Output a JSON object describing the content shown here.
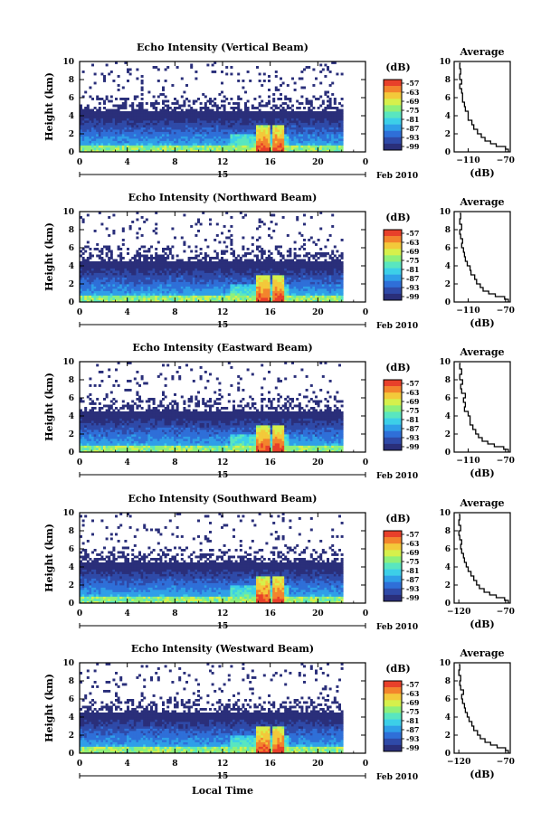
{
  "figure": {
    "xlabel": "Local Time",
    "date_label": "Feb 2010",
    "date_tick": "15"
  },
  "chart_data": [
    {
      "type": "heatmap",
      "title": "Echo Intensity (Vertical Beam)",
      "ylabel": "Height (km)",
      "xlim": [
        0,
        24
      ],
      "ylim": [
        0,
        10
      ],
      "x_ticks": [
        "0",
        "4",
        "8",
        "12",
        "16",
        "20",
        "0"
      ],
      "y_ticks": [
        "0",
        "2",
        "4",
        "6",
        "8",
        "10"
      ],
      "colorbar": {
        "label": "(dB)",
        "ticks": [
          "-57",
          "-63",
          "-69",
          "-75",
          "-81",
          "-87",
          "-93",
          "-99"
        ]
      },
      "average": {
        "title": "Average",
        "xlabel": "(dB)",
        "x_ticks": [
          "-110",
          "-70"
        ],
        "y_ticks": [
          "0",
          "2",
          "4",
          "6",
          "8",
          "10"
        ],
        "xlim": [
          -125,
          -65
        ],
        "profile": [
          [
            -67,
            0
          ],
          [
            -70,
            0.3
          ],
          [
            -80,
            0.6
          ],
          [
            -86,
            0.9
          ],
          [
            -92,
            1.2
          ],
          [
            -96,
            1.6
          ],
          [
            -100,
            2.0
          ],
          [
            -104,
            2.5
          ],
          [
            -106,
            3.0
          ],
          [
            -110,
            3.5
          ],
          [
            -110,
            4.0
          ],
          [
            -113,
            4.5
          ],
          [
            -114,
            5.0
          ],
          [
            -116,
            5.5
          ],
          [
            -116,
            6.0
          ],
          [
            -117,
            6.5
          ],
          [
            -119,
            7.0
          ],
          [
            -117,
            7.5
          ],
          [
            -119,
            8.0
          ],
          [
            -118,
            8.6
          ],
          [
            -119,
            9.2
          ],
          [
            -118,
            9.8
          ]
        ]
      }
    },
    {
      "type": "heatmap",
      "title": "Echo Intensity (Northward Beam)",
      "ylabel": "Height (km)",
      "xlim": [
        0,
        24
      ],
      "ylim": [
        0,
        10
      ],
      "x_ticks": [
        "0",
        "4",
        "8",
        "12",
        "16",
        "20",
        "0"
      ],
      "y_ticks": [
        "0",
        "2",
        "4",
        "6",
        "8",
        "10"
      ],
      "colorbar": {
        "label": "(dB)",
        "ticks": [
          "-57",
          "-63",
          "-69",
          "-75",
          "-81",
          "-87",
          "-93",
          "-99"
        ]
      },
      "average": {
        "title": "Average",
        "xlabel": "(dB)",
        "x_ticks": [
          "-110",
          "-70"
        ],
        "y_ticks": [
          "0",
          "2",
          "4",
          "6",
          "8",
          "10"
        ],
        "xlim": [
          -125,
          -65
        ],
        "profile": [
          [
            -67,
            0
          ],
          [
            -71,
            0.3
          ],
          [
            -81,
            0.6
          ],
          [
            -88,
            0.9
          ],
          [
            -94,
            1.2
          ],
          [
            -97,
            1.6
          ],
          [
            -101,
            2.0
          ],
          [
            -103,
            2.5
          ],
          [
            -107,
            3.0
          ],
          [
            -108,
            3.5
          ],
          [
            -111,
            4.0
          ],
          [
            -113,
            4.5
          ],
          [
            -114,
            5.0
          ],
          [
            -115,
            5.5
          ],
          [
            -117,
            6.0
          ],
          [
            -116,
            6.5
          ],
          [
            -118,
            7.0
          ],
          [
            -119,
            7.5
          ],
          [
            -117,
            8.0
          ],
          [
            -119,
            8.6
          ],
          [
            -118,
            9.2
          ],
          [
            -119,
            9.8
          ]
        ]
      }
    },
    {
      "type": "heatmap",
      "title": "Echo Intensity (Eastward Beam)",
      "ylabel": "Height (km)",
      "xlim": [
        0,
        24
      ],
      "ylim": [
        0,
        10
      ],
      "x_ticks": [
        "0",
        "4",
        "8",
        "12",
        "16",
        "20",
        "0"
      ],
      "y_ticks": [
        "0",
        "2",
        "4",
        "6",
        "8",
        "10"
      ],
      "colorbar": {
        "label": "(dB)",
        "ticks": [
          "-57",
          "-63",
          "-69",
          "-75",
          "-81",
          "-87",
          "-93",
          "-99"
        ]
      },
      "average": {
        "title": "Average",
        "xlabel": "(dB)",
        "x_ticks": [
          "-110",
          "-70"
        ],
        "y_ticks": [
          "0",
          "2",
          "4",
          "6",
          "8",
          "10"
        ],
        "xlim": [
          -125,
          -65
        ],
        "profile": [
          [
            -67,
            0
          ],
          [
            -72,
            0.3
          ],
          [
            -82,
            0.6
          ],
          [
            -89,
            0.9
          ],
          [
            -95,
            1.2
          ],
          [
            -99,
            1.6
          ],
          [
            -102,
            2.0
          ],
          [
            -105,
            2.5
          ],
          [
            -108,
            3.0
          ],
          [
            -108,
            3.5
          ],
          [
            -110,
            4.0
          ],
          [
            -114,
            4.5
          ],
          [
            -113,
            5.0
          ],
          [
            -115,
            5.5
          ],
          [
            -113,
            6.0
          ],
          [
            -117,
            6.5
          ],
          [
            -118,
            7.0
          ],
          [
            -116,
            7.5
          ],
          [
            -119,
            8.0
          ],
          [
            -117,
            8.6
          ],
          [
            -119,
            9.2
          ],
          [
            -118,
            9.8
          ]
        ]
      }
    },
    {
      "type": "heatmap",
      "title": "Echo Intensity (Southward Beam)",
      "ylabel": "Height (km)",
      "xlim": [
        0,
        24
      ],
      "ylim": [
        0,
        10
      ],
      "x_ticks": [
        "0",
        "4",
        "8",
        "12",
        "16",
        "20",
        "0"
      ],
      "y_ticks": [
        "0",
        "2",
        "4",
        "6",
        "8",
        "10"
      ],
      "colorbar": {
        "label": "(dB)",
        "ticks": [
          "-57",
          "-63",
          "-69",
          "-75",
          "-81",
          "-87",
          "-93",
          "-99"
        ]
      },
      "average": {
        "title": "Average",
        "xlabel": "(dB)",
        "x_ticks": [
          "-120",
          "-70"
        ],
        "y_ticks": [
          "0",
          "2",
          "4",
          "6",
          "8",
          "10"
        ],
        "xlim": [
          -125,
          -65
        ],
        "profile": [
          [
            -67,
            0
          ],
          [
            -71,
            0.3
          ],
          [
            -80,
            0.6
          ],
          [
            -87,
            0.9
          ],
          [
            -93,
            1.2
          ],
          [
            -98,
            1.6
          ],
          [
            -101,
            2.0
          ],
          [
            -104,
            2.5
          ],
          [
            -107,
            3.0
          ],
          [
            -110,
            3.5
          ],
          [
            -112,
            4.0
          ],
          [
            -114,
            4.5
          ],
          [
            -115,
            5.0
          ],
          [
            -117,
            5.5
          ],
          [
            -118,
            6.0
          ],
          [
            -117,
            6.5
          ],
          [
            -119,
            7.0
          ],
          [
            -120,
            7.5
          ],
          [
            -118,
            8.0
          ],
          [
            -120,
            8.6
          ],
          [
            -119,
            9.2
          ],
          [
            -120,
            9.8
          ]
        ]
      }
    },
    {
      "type": "heatmap",
      "title": "Echo Intensity (Westward Beam)",
      "ylabel": "Height (km)",
      "xlim": [
        0,
        24
      ],
      "ylim": [
        0,
        10
      ],
      "x_ticks": [
        "0",
        "4",
        "8",
        "12",
        "16",
        "20",
        "0"
      ],
      "y_ticks": [
        "0",
        "2",
        "4",
        "6",
        "8",
        "10"
      ],
      "colorbar": {
        "label": "(dB)",
        "ticks": [
          "-57",
          "-63",
          "-69",
          "-75",
          "-81",
          "-87",
          "-93",
          "-99"
        ]
      },
      "average": {
        "title": "Average",
        "xlabel": "(dB)",
        "x_ticks": [
          "-120",
          "-70"
        ],
        "y_ticks": [
          "0",
          "2",
          "4",
          "6",
          "8",
          "10"
        ],
        "xlim": [
          -125,
          -65
        ],
        "profile": [
          [
            -67,
            0
          ],
          [
            -70,
            0.3
          ],
          [
            -79,
            0.6
          ],
          [
            -86,
            0.9
          ],
          [
            -92,
            1.2
          ],
          [
            -97,
            1.6
          ],
          [
            -100,
            2.0
          ],
          [
            -104,
            2.5
          ],
          [
            -106,
            3.0
          ],
          [
            -109,
            3.5
          ],
          [
            -111,
            4.0
          ],
          [
            -113,
            4.5
          ],
          [
            -114,
            5.0
          ],
          [
            -116,
            5.5
          ],
          [
            -117,
            6.0
          ],
          [
            -115,
            6.5
          ],
          [
            -118,
            7.0
          ],
          [
            -119,
            7.5
          ],
          [
            -118,
            8.0
          ],
          [
            -120,
            8.6
          ],
          [
            -119,
            9.2
          ],
          [
            -120,
            9.8
          ]
        ]
      }
    }
  ],
  "colors": {
    "colormap": [
      "#2a2f7a",
      "#2f4aa8",
      "#2f6fd8",
      "#2f9fe8",
      "#3ccfe8",
      "#59e6c0",
      "#8ff07a",
      "#d6f04c",
      "#f3c93a",
      "#f3842c",
      "#e8402a"
    ]
  }
}
